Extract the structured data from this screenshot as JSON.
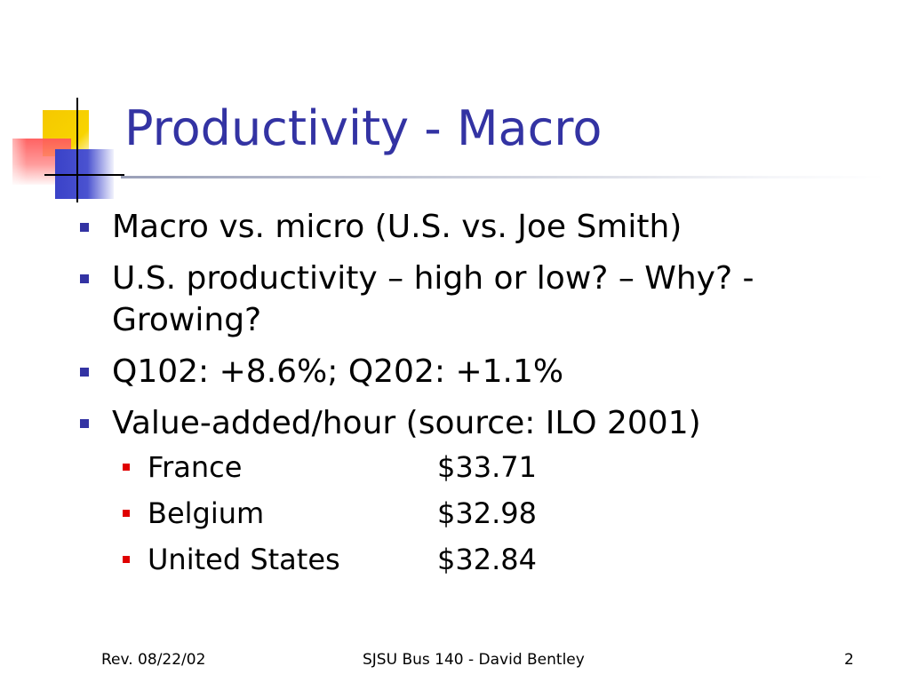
{
  "slide": {
    "title": "Productivity - Macro",
    "bullets": [
      {
        "text": "Macro vs. micro (U.S. vs. Joe Smith)"
      },
      {
        "text": "U.S. productivity – high or low? – Why? - Growing?"
      },
      {
        "text": "Q102: +8.6%; Q202: +1.1%"
      },
      {
        "text": "Value-added/hour (source: ILO 2001)"
      }
    ],
    "sub_bullets": [
      {
        "country": "France",
        "value": "$33.71"
      },
      {
        "country": "Belgium",
        "value": "$32.98"
      },
      {
        "country": "United States",
        "value": "$32.84"
      }
    ]
  },
  "footer": {
    "left": "Rev. 08/22/02",
    "center": "SJSU Bus 140 - David Bentley",
    "right": "2"
  },
  "colors": {
    "title": "#3333a3",
    "bullet_primary": "#3333a3",
    "bullet_secondary": "#e00000",
    "logo_yellow": "#f5c800",
    "logo_red": "#ff5a5a",
    "logo_blue": "#3a42c8"
  }
}
